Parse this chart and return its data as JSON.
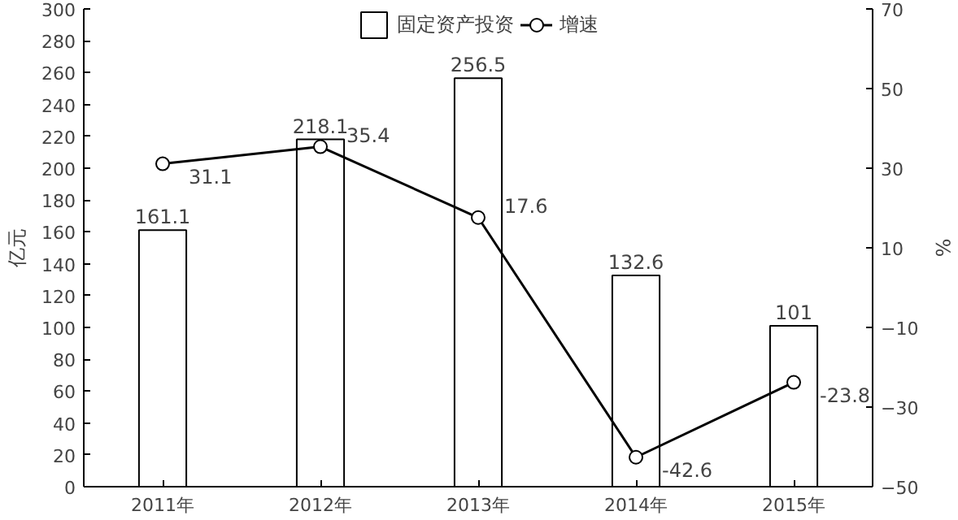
{
  "chart_data": {
    "type": "bar",
    "categories": [
      "2011年",
      "2012年",
      "2013年",
      "2014年",
      "2015年"
    ],
    "ylabel": "亿元",
    "y2label": "%",
    "series": [
      {
        "name": "固定资产投资",
        "color": "#ffffff",
        "values": [
          161.1,
          218.1,
          256.5,
          132.6,
          101
        ]
      },
      {
        "name": "增速",
        "type": "line",
        "axis": "y2",
        "color": "#000000",
        "marker": "circle",
        "values": [
          31.1,
          35.4,
          17.6,
          -42.6,
          -23.8
        ]
      }
    ],
    "ylim": [
      0,
      300
    ],
    "yticks": [
      0,
      20,
      40,
      60,
      80,
      100,
      120,
      140,
      160,
      180,
      200,
      220,
      240,
      260,
      280,
      300
    ],
    "y2lim": [
      -50,
      70
    ],
    "y2ticks": [
      -50,
      -30,
      -10,
      10,
      30,
      50,
      70
    ],
    "data_labels": true,
    "legend": "top",
    "grid": false
  }
}
